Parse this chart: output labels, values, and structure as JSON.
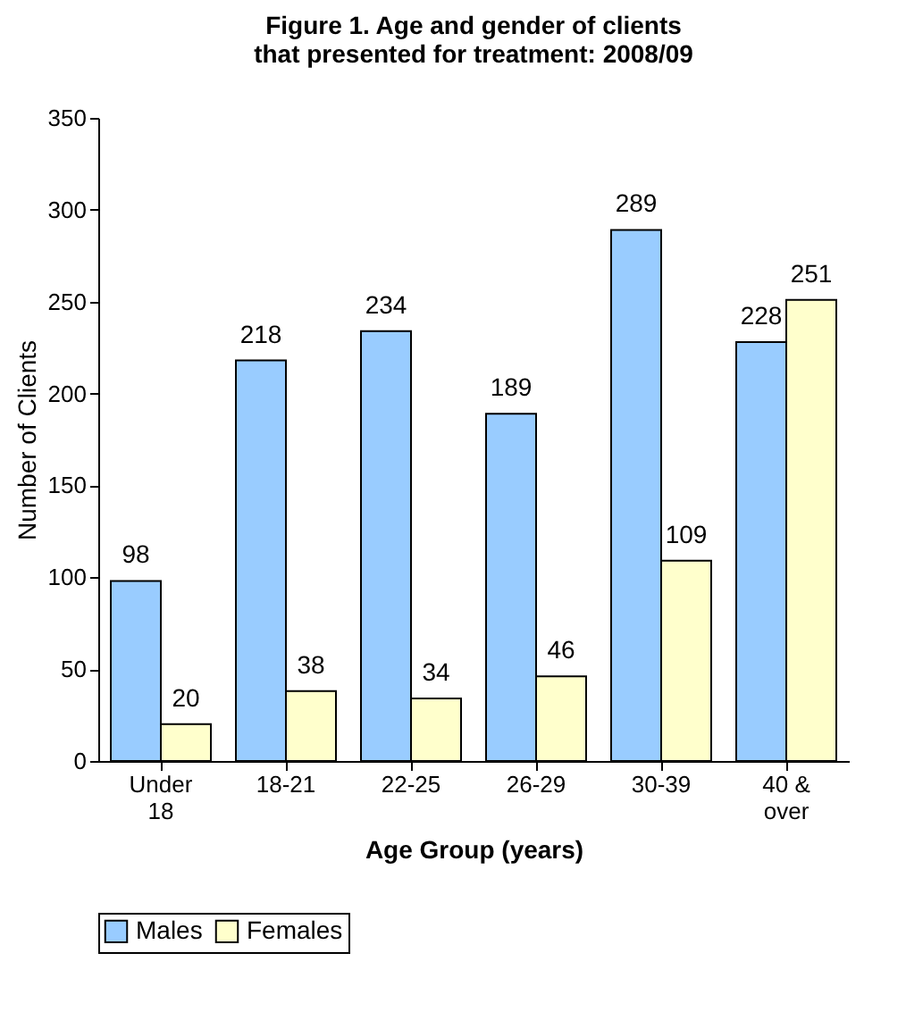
{
  "chart_data": {
    "type": "bar",
    "title": "Figure 1. Age and gender of clients that presented for treatment: 2008/09",
    "xlabel": "Age Group (years)",
    "ylabel": "Number of Clients",
    "categories": [
      "Under 18",
      "18-21",
      "22-25",
      "26-29",
      "30-39",
      "40 & over"
    ],
    "series": [
      {
        "name": "Males",
        "color": "#99ccff",
        "values": [
          98,
          218,
          234,
          189,
          289,
          228
        ]
      },
      {
        "name": "Females",
        "color": "#ffffcc",
        "values": [
          20,
          38,
          34,
          46,
          109,
          251
        ]
      }
    ],
    "ylim": [
      0,
      350
    ],
    "yticks": [
      0,
      50,
      100,
      150,
      200,
      250,
      300,
      350
    ],
    "grid": false,
    "legend": "bottom",
    "data_labels": true
  }
}
